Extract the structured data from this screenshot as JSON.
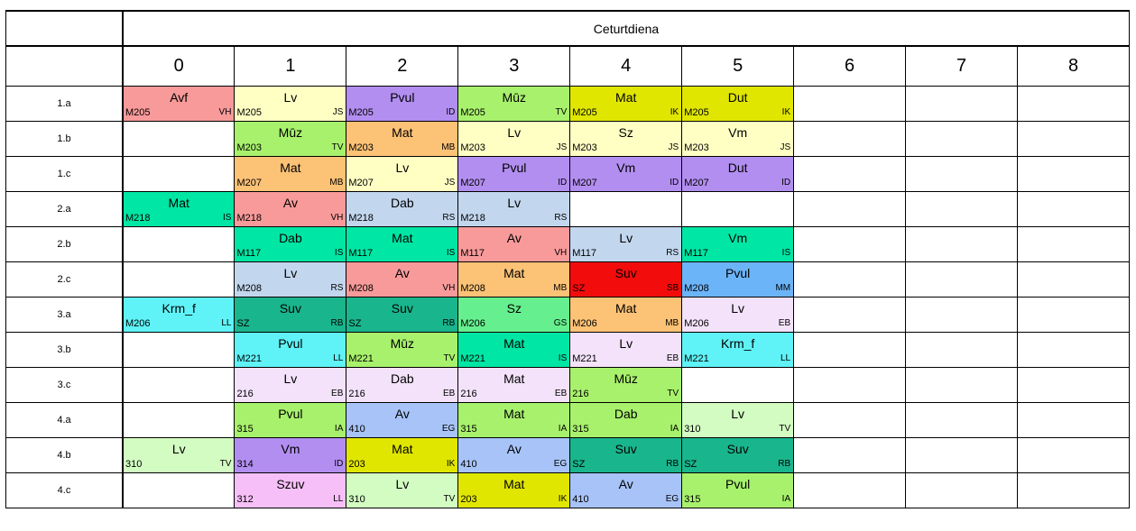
{
  "day": "Ceturtdiena",
  "periods": [
    "0",
    "1",
    "2",
    "3",
    "4",
    "5",
    "6",
    "7",
    "8"
  ],
  "rows": [
    {
      "class": "1.a",
      "cells": [
        {
          "subject": "Avf",
          "room": "M205",
          "teacher": "VH",
          "color": "#f89a9a"
        },
        {
          "subject": "Lv",
          "room": "M205",
          "teacher": "JS",
          "color": "#ffffc4"
        },
        {
          "subject": "Pvul",
          "room": "M205",
          "teacher": "ID",
          "color": "#b28ef0"
        },
        {
          "subject": "Mūz",
          "room": "M205",
          "teacher": "TV",
          "color": "#a8f16c"
        },
        {
          "subject": "Mat",
          "room": "M205",
          "teacher": "IK",
          "color": "#e0e600"
        },
        {
          "subject": "Dut",
          "room": "M205",
          "teacher": "IK",
          "color": "#e0e600"
        },
        null,
        null,
        null
      ]
    },
    {
      "class": "1.b",
      "cells": [
        null,
        {
          "subject": "Mūz",
          "room": "M203",
          "teacher": "TV",
          "color": "#a8f16c"
        },
        {
          "subject": "Mat",
          "room": "M203",
          "teacher": "MB",
          "color": "#fcc276"
        },
        {
          "subject": "Lv",
          "room": "M203",
          "teacher": "JS",
          "color": "#ffffc4"
        },
        {
          "subject": "Sz",
          "room": "M203",
          "teacher": "JS",
          "color": "#ffffc4"
        },
        {
          "subject": "Vm",
          "room": "M203",
          "teacher": "JS",
          "color": "#ffffc4"
        },
        null,
        null,
        null
      ]
    },
    {
      "class": "1.c",
      "cells": [
        null,
        {
          "subject": "Mat",
          "room": "M207",
          "teacher": "MB",
          "color": "#fcc276"
        },
        {
          "subject": "Lv",
          "room": "M207",
          "teacher": "JS",
          "color": "#ffffc4"
        },
        {
          "subject": "Pvul",
          "room": "M207",
          "teacher": "ID",
          "color": "#b28ef0"
        },
        {
          "subject": "Vm",
          "room": "M207",
          "teacher": "ID",
          "color": "#b28ef0"
        },
        {
          "subject": "Dut",
          "room": "M207",
          "teacher": "ID",
          "color": "#b28ef0"
        },
        null,
        null,
        null
      ]
    },
    {
      "class": "2.a",
      "cells": [
        {
          "subject": "Mat",
          "room": "M218",
          "teacher": "IS",
          "color": "#00e6a4"
        },
        {
          "subject": "Av",
          "room": "M218",
          "teacher": "VH",
          "color": "#f89a9a"
        },
        {
          "subject": "Dab",
          "room": "M218",
          "teacher": "RS",
          "color": "#c2d6ee"
        },
        {
          "subject": "Lv",
          "room": "M218",
          "teacher": "RS",
          "color": "#c2d6ee"
        },
        null,
        null,
        null,
        null,
        null
      ]
    },
    {
      "class": "2.b",
      "cells": [
        null,
        {
          "subject": "Dab",
          "room": "M117",
          "teacher": "IS",
          "color": "#00e6a4"
        },
        {
          "subject": "Mat",
          "room": "M117",
          "teacher": "IS",
          "color": "#00e6a4"
        },
        {
          "subject": "Av",
          "room": "M117",
          "teacher": "VH",
          "color": "#f89a9a"
        },
        {
          "subject": "Lv",
          "room": "M117",
          "teacher": "RS",
          "color": "#c2d6ee"
        },
        {
          "subject": "Vm",
          "room": "M117",
          "teacher": "IS",
          "color": "#00e6a4"
        },
        null,
        null,
        null
      ]
    },
    {
      "class": "2.c",
      "cells": [
        null,
        {
          "subject": "Lv",
          "room": "M208",
          "teacher": "RS",
          "color": "#c2d6ee"
        },
        {
          "subject": "Av",
          "room": "M208",
          "teacher": "VH",
          "color": "#f89a9a"
        },
        {
          "subject": "Mat",
          "room": "M208",
          "teacher": "MB",
          "color": "#fcc276"
        },
        {
          "subject": "Suv",
          "room": "SZ",
          "teacher": "SB",
          "color": "#f20c0c"
        },
        {
          "subject": "Pvul",
          "room": "M208",
          "teacher": "MM",
          "color": "#6cb4f8"
        },
        null,
        null,
        null
      ]
    },
    {
      "class": "3.a",
      "cells": [
        {
          "subject": "Krm_f",
          "room": "M206",
          "teacher": "LL",
          "color": "#5ff2f6"
        },
        {
          "subject": "Suv",
          "room": "SZ",
          "teacher": "RB",
          "color": "#19b58c"
        },
        {
          "subject": "Suv",
          "room": "SZ",
          "teacher": "RB",
          "color": "#19b58c"
        },
        {
          "subject": "Sz",
          "room": "M206",
          "teacher": "GS",
          "color": "#66ef8e"
        },
        {
          "subject": "Mat",
          "room": "M206",
          "teacher": "MB",
          "color": "#fcc276"
        },
        {
          "subject": "Lv",
          "room": "M206",
          "teacher": "EB",
          "color": "#f3e2fa"
        },
        null,
        null,
        null
      ]
    },
    {
      "class": "3.b",
      "cells": [
        null,
        {
          "subject": "Pvul",
          "room": "M221",
          "teacher": "LL",
          "color": "#5ff2f6"
        },
        {
          "subject": "Mūz",
          "room": "M221",
          "teacher": "TV",
          "color": "#a8f16c"
        },
        {
          "subject": "Mat",
          "room": "M221",
          "teacher": "IS",
          "color": "#00e6a4"
        },
        {
          "subject": "Lv",
          "room": "M221",
          "teacher": "EB",
          "color": "#f3e2fa"
        },
        {
          "subject": "Krm_f",
          "room": "M221",
          "teacher": "LL",
          "color": "#5ff2f6"
        },
        null,
        null,
        null
      ]
    },
    {
      "class": "3.c",
      "cells": [
        null,
        {
          "subject": "Lv",
          "room": "216",
          "teacher": "EB",
          "color": "#f3e2fa"
        },
        {
          "subject": "Dab",
          "room": "216",
          "teacher": "EB",
          "color": "#f3e2fa"
        },
        {
          "subject": "Mat",
          "room": "216",
          "teacher": "EB",
          "color": "#f3e2fa"
        },
        {
          "subject": "Mūz",
          "room": "216",
          "teacher": "TV",
          "color": "#a8f16c"
        },
        null,
        null,
        null,
        null
      ]
    },
    {
      "class": "4.a",
      "cells": [
        null,
        {
          "subject": "Pvul",
          "room": "315",
          "teacher": "IA",
          "color": "#a8f16c"
        },
        {
          "subject": "Av",
          "room": "410",
          "teacher": "EG",
          "color": "#a7c3f8"
        },
        {
          "subject": "Mat",
          "room": "315",
          "teacher": "IA",
          "color": "#a8f16c"
        },
        {
          "subject": "Dab",
          "room": "315",
          "teacher": "IA",
          "color": "#a8f16c"
        },
        {
          "subject": "Lv",
          "room": "310",
          "teacher": "TV",
          "color": "#d2fcc2"
        },
        null,
        null,
        null
      ]
    },
    {
      "class": "4.b",
      "cells": [
        {
          "subject": "Lv",
          "room": "310",
          "teacher": "TV",
          "color": "#d2fcc2"
        },
        {
          "subject": "Vm",
          "room": "314",
          "teacher": "ID",
          "color": "#b28ef0"
        },
        {
          "subject": "Mat",
          "room": "203",
          "teacher": "IK",
          "color": "#e0e600"
        },
        {
          "subject": "Av",
          "room": "410",
          "teacher": "EG",
          "color": "#a7c3f8"
        },
        {
          "subject": "Suv",
          "room": "SZ",
          "teacher": "RB",
          "color": "#19b58c"
        },
        {
          "subject": "Suv",
          "room": "SZ",
          "teacher": "RB",
          "color": "#19b58c"
        },
        null,
        null,
        null
      ]
    },
    {
      "class": "4.c",
      "cells": [
        null,
        {
          "subject": "Szuv",
          "room": "312",
          "teacher": "LL",
          "color": "#f7bff8"
        },
        {
          "subject": "Lv",
          "room": "310",
          "teacher": "TV",
          "color": "#d2fcc2"
        },
        {
          "subject": "Mat",
          "room": "203",
          "teacher": "IK",
          "color": "#e0e600"
        },
        {
          "subject": "Av",
          "room": "410",
          "teacher": "EG",
          "color": "#a7c3f8"
        },
        {
          "subject": "Pvul",
          "room": "315",
          "teacher": "IA",
          "color": "#a8f16c"
        },
        null,
        null,
        null
      ]
    }
  ]
}
